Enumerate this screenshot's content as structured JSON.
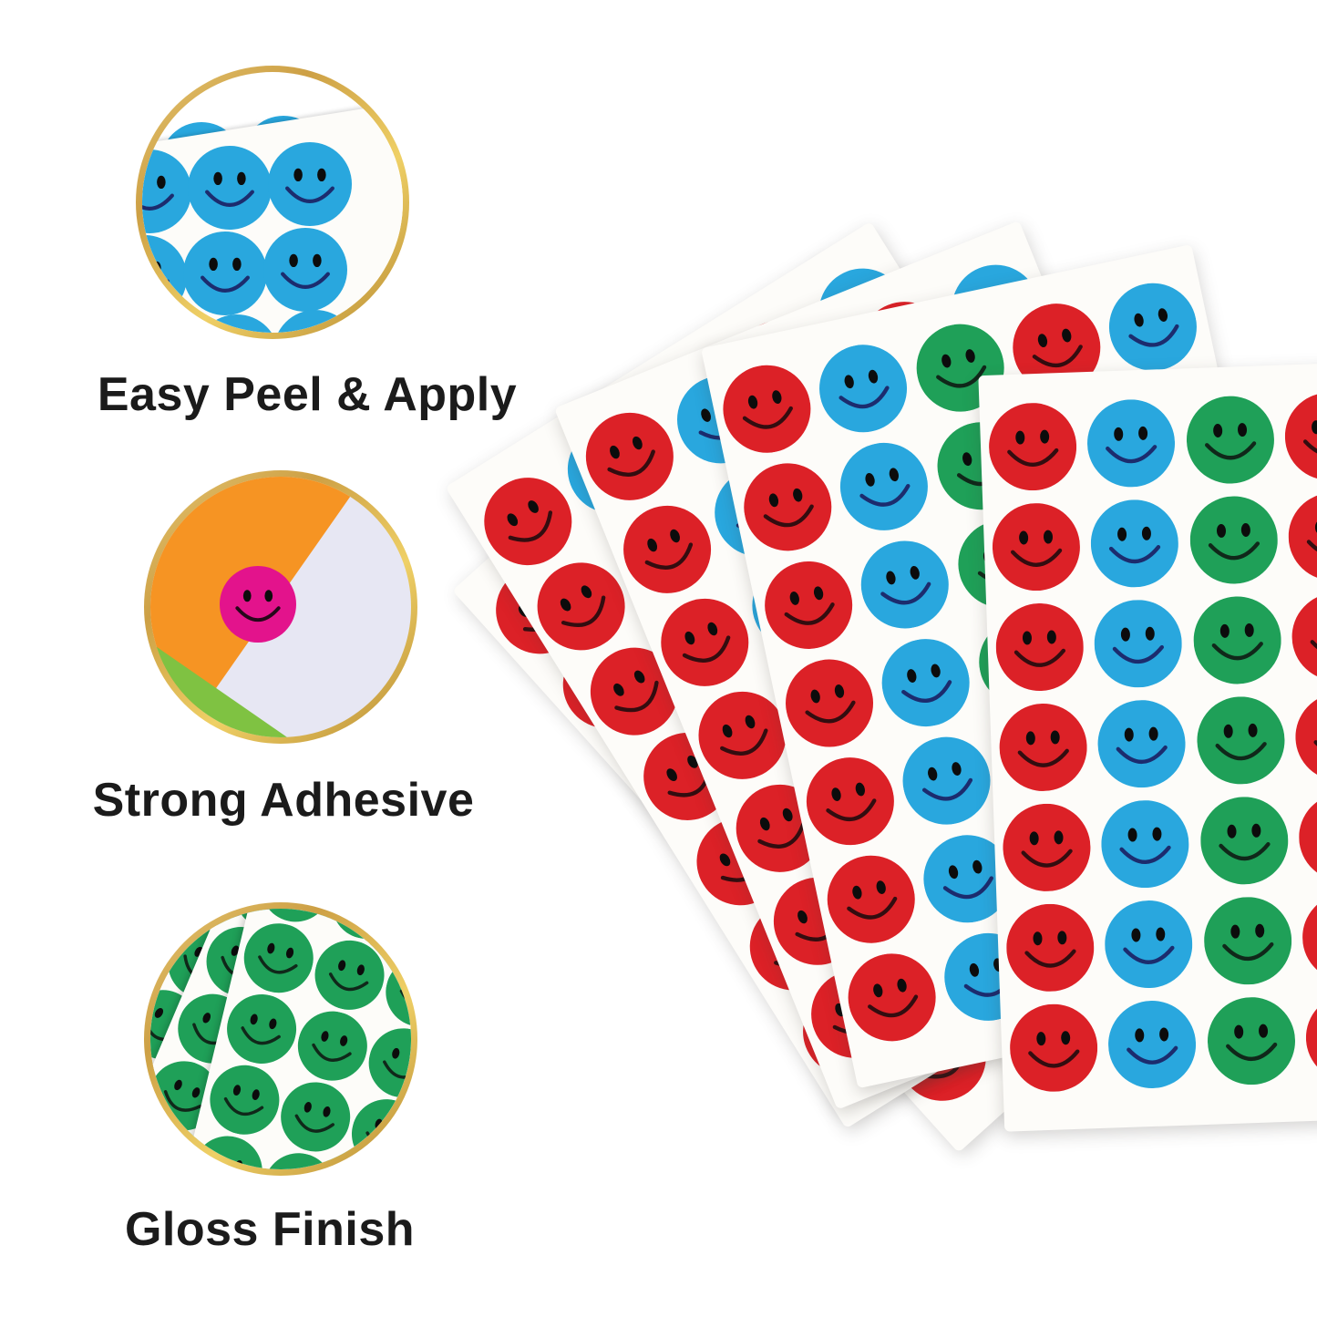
{
  "features": [
    {
      "label": "Easy Peel & Apply",
      "image_icon": "blue-smiley-stickers-photo"
    },
    {
      "label": "Strong Adhesive",
      "image_icon": "pink-smiley-sticker-on-papers-photo"
    },
    {
      "label": "Gloss Finish",
      "image_icon": "green-smiley-sticker-sheets-photo"
    }
  ],
  "fan": {
    "sheet_count": 5,
    "rows_per_sheet": 7,
    "columns": [
      "red",
      "blue",
      "green",
      "red",
      "blue"
    ]
  },
  "colors": {
    "sticker_red": "#DC2127",
    "sticker_blue": "#29A7DE",
    "sticker_green": "#1FA058",
    "sticker_pink": "#E3138C",
    "eye_black": "#0C0C0C",
    "smile_on_red": "#330D10",
    "smile_on_blue": "#1C2C6E",
    "smile_on_green": "#10281A",
    "smile_on_pink": "#26081A",
    "sheet_paper": "#FDFCF9",
    "paper_lavender": "#E7E7F3",
    "paper_orange": "#F69423",
    "paper_green": "#7FC242",
    "gold_ring": "#CDA045",
    "label_text": "#1B1B1B",
    "background": "#FFFFFF"
  }
}
